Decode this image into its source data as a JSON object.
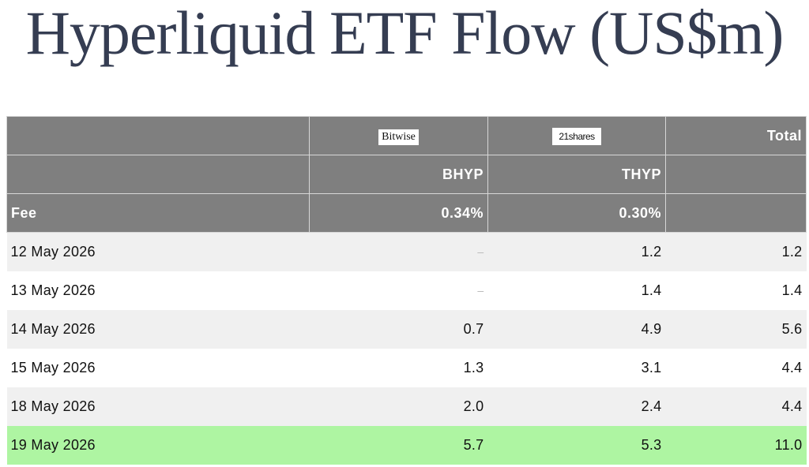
{
  "title": "Hyperliquid ETF Flow (US$m)",
  "chart_data": {
    "type": "table",
    "title": "Hyperliquid ETF Flow (US$m)",
    "header": {
      "issuers": [
        "",
        "Bitwise",
        "21shares",
        "Total"
      ],
      "tickers": [
        "",
        "BHYP",
        "THYP",
        ""
      ],
      "fee_label": "Fee",
      "fees": [
        "0.34%",
        "0.30%",
        ""
      ]
    },
    "rows": [
      {
        "date": "12 May 2026",
        "bhyp": "–",
        "thyp": "1.2",
        "total": "1.2"
      },
      {
        "date": "13 May 2026",
        "bhyp": "–",
        "thyp": "1.4",
        "total": "1.4"
      },
      {
        "date": "14 May 2026",
        "bhyp": "0.7",
        "thyp": "4.9",
        "total": "5.6"
      },
      {
        "date": "15 May 2026",
        "bhyp": "1.3",
        "thyp": "3.1",
        "total": "4.4"
      },
      {
        "date": "18 May 2026",
        "bhyp": "2.0",
        "thyp": "2.4",
        "total": "4.4"
      },
      {
        "date": "19 May 2026",
        "bhyp": "5.7",
        "thyp": "5.3",
        "total": "11.0"
      }
    ],
    "highlight_color": "#aef5a2",
    "header_color": "#7f7f7f"
  }
}
